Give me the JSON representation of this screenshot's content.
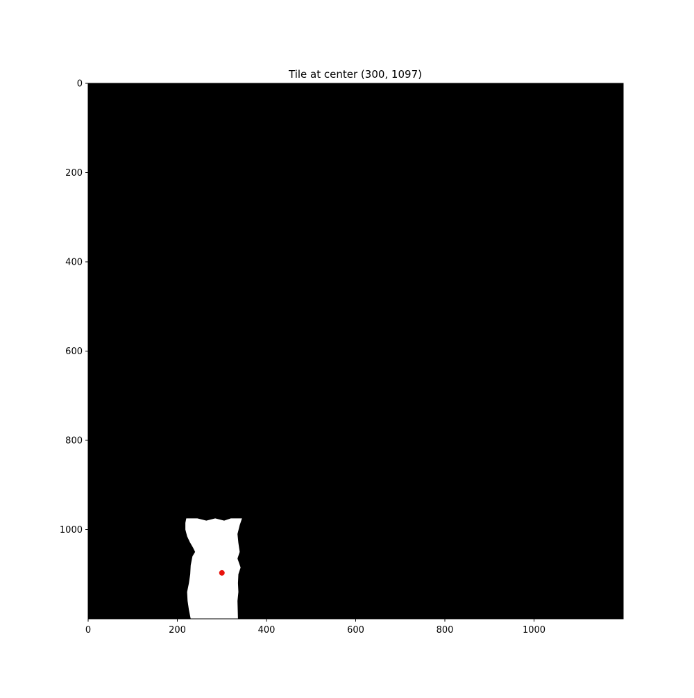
{
  "chart_data": {
    "type": "heatmap",
    "title": "Tile at center (300, 1097)",
    "xlabel": "",
    "ylabel": "",
    "xlim": [
      0,
      1200
    ],
    "ylim": [
      1200,
      0
    ],
    "y_inverted": true,
    "grid": false,
    "xticks": [
      0,
      200,
      400,
      600,
      800,
      1000
    ],
    "yticks": [
      0,
      200,
      400,
      600,
      800,
      1000
    ],
    "background_color": "#000000",
    "mask_color": "#ffffff",
    "mask_polygon": [
      [
        220,
        975
      ],
      [
        245,
        975
      ],
      [
        265,
        980
      ],
      [
        285,
        975
      ],
      [
        305,
        980
      ],
      [
        320,
        975
      ],
      [
        345,
        975
      ],
      [
        340,
        990
      ],
      [
        335,
        1010
      ],
      [
        337,
        1030
      ],
      [
        340,
        1050
      ],
      [
        335,
        1065
      ],
      [
        342,
        1085
      ],
      [
        337,
        1100
      ],
      [
        336,
        1120
      ],
      [
        337,
        1140
      ],
      [
        335,
        1160
      ],
      [
        336,
        1200
      ],
      [
        230,
        1200
      ],
      [
        226,
        1180
      ],
      [
        223,
        1160
      ],
      [
        222,
        1140
      ],
      [
        226,
        1120
      ],
      [
        229,
        1100
      ],
      [
        230,
        1080
      ],
      [
        234,
        1060
      ],
      [
        240,
        1050
      ],
      [
        235,
        1040
      ],
      [
        228,
        1028
      ],
      [
        222,
        1015
      ],
      [
        218,
        1000
      ],
      [
        218,
        985
      ]
    ],
    "marker": {
      "x": 300,
      "y": 1097,
      "color": "#e8120c"
    }
  }
}
